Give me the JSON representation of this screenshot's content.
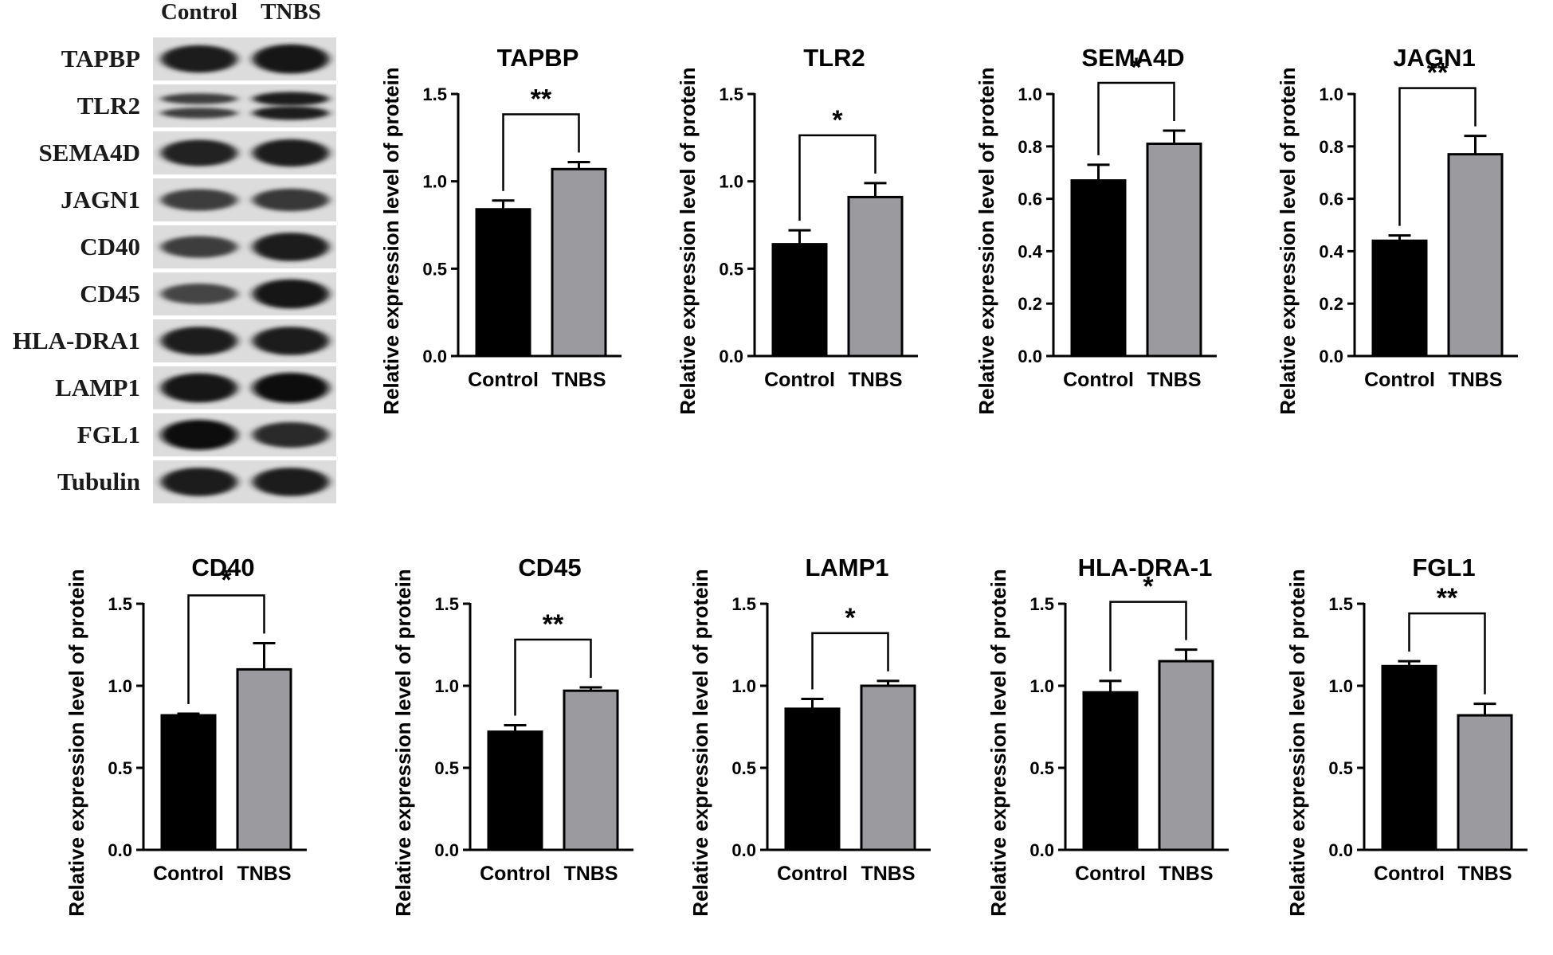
{
  "blot": {
    "columns": [
      "Control",
      "TNBS"
    ],
    "rows": [
      {
        "label": "TAPBP",
        "c": 0.85,
        "t": 0.95
      },
      {
        "label": "TLR2",
        "c": 0.55,
        "t": 0.85
      },
      {
        "label": "SEMA4D",
        "c": 0.8,
        "t": 0.85
      },
      {
        "label": "JAGN1",
        "c": 0.55,
        "t": 0.6
      },
      {
        "label": "CD40",
        "c": 0.55,
        "t": 0.9
      },
      {
        "label": "CD45",
        "c": 0.5,
        "t": 0.95
      },
      {
        "label": "HLA-DRA1",
        "c": 0.9,
        "t": 0.9
      },
      {
        "label": "LAMP1",
        "c": 0.95,
        "t": 1.0
      },
      {
        "label": "FGL1",
        "c": 1.0,
        "t": 0.75
      },
      {
        "label": "Tubulin",
        "c": 0.9,
        "t": 0.9
      }
    ]
  },
  "chart_data": [
    {
      "type": "bar",
      "title": "TAPBP",
      "ylabel": "Relative expression level of protein",
      "categories": [
        "Control",
        "TNBS"
      ],
      "values": [
        0.84,
        1.07
      ],
      "errors": [
        0.05,
        0.04
      ],
      "ylim": [
        0,
        1.5
      ],
      "yticks": [
        "0.0",
        "0.5",
        "1.0",
        "1.5"
      ],
      "significance": "**"
    },
    {
      "type": "bar",
      "title": "TLR2",
      "ylabel": "Relative expression level of protein",
      "categories": [
        "Control",
        "TNBS"
      ],
      "values": [
        0.64,
        0.91
      ],
      "errors": [
        0.08,
        0.08
      ],
      "ylim": [
        0,
        1.5
      ],
      "yticks": [
        "0.0",
        "0.5",
        "1.0",
        "1.5"
      ],
      "significance": "*"
    },
    {
      "type": "bar",
      "title": "SEMA4D",
      "ylabel": "Relative expression level of protein",
      "categories": [
        "Control",
        "TNBS"
      ],
      "values": [
        0.67,
        0.81
      ],
      "errors": [
        0.06,
        0.05
      ],
      "ylim": [
        0,
        1.0
      ],
      "yticks": [
        "0.0",
        "0.2",
        "0.4",
        "0.6",
        "0.8",
        "1.0"
      ],
      "significance": "*"
    },
    {
      "type": "bar",
      "title": "JAGN1",
      "ylabel": "Relative expression level of protein",
      "categories": [
        "Control",
        "TNBS"
      ],
      "values": [
        0.44,
        0.77
      ],
      "errors": [
        0.02,
        0.07
      ],
      "ylim": [
        0,
        1.0
      ],
      "yticks": [
        "0.0",
        "0.2",
        "0.4",
        "0.6",
        "0.8",
        "1.0"
      ],
      "significance": "**"
    },
    {
      "type": "bar",
      "title": "CD40",
      "ylabel": "Relative expression level of protein",
      "categories": [
        "Control",
        "TNBS"
      ],
      "values": [
        0.82,
        1.1
      ],
      "errors": [
        0.01,
        0.16
      ],
      "ylim": [
        0,
        1.5
      ],
      "yticks": [
        "0.0",
        "0.5",
        "1.0",
        "1.5"
      ],
      "significance": "*"
    },
    {
      "type": "bar",
      "title": "CD45",
      "ylabel": "Relative expression level of protein",
      "categories": [
        "Control",
        "TNBS"
      ],
      "values": [
        0.72,
        0.97
      ],
      "errors": [
        0.04,
        0.02
      ],
      "ylim": [
        0,
        1.5
      ],
      "yticks": [
        "0.0",
        "0.5",
        "1.0",
        "1.5"
      ],
      "significance": "**"
    },
    {
      "type": "bar",
      "title": "LAMP1",
      "ylabel": "Relative expression level of protein",
      "categories": [
        "Control",
        "TNBS"
      ],
      "values": [
        0.86,
        1.0
      ],
      "errors": [
        0.06,
        0.03
      ],
      "ylim": [
        0,
        1.5
      ],
      "yticks": [
        "0.0",
        "0.5",
        "1.0",
        "1.5"
      ],
      "significance": "*"
    },
    {
      "type": "bar",
      "title": "HLA-DRA-1",
      "ylabel": "Relative expression level of protein",
      "categories": [
        "Control",
        "TNBS"
      ],
      "values": [
        0.96,
        1.15
      ],
      "errors": [
        0.07,
        0.07
      ],
      "ylim": [
        0,
        1.5
      ],
      "yticks": [
        "0.0",
        "0.5",
        "1.0",
        "1.5"
      ],
      "significance": "*"
    },
    {
      "type": "bar",
      "title": "FGL1",
      "ylabel": "Relative expression level of protein",
      "categories": [
        "Control",
        "TNBS"
      ],
      "values": [
        1.12,
        0.82
      ],
      "errors": [
        0.03,
        0.07
      ],
      "ylim": [
        0,
        1.5
      ],
      "yticks": [
        "0.0",
        "0.5",
        "1.0",
        "1.5"
      ],
      "significance": "**"
    }
  ],
  "colors": {
    "control": "#000000",
    "tnbs": "#9b9b9f",
    "axis": "#000000"
  }
}
